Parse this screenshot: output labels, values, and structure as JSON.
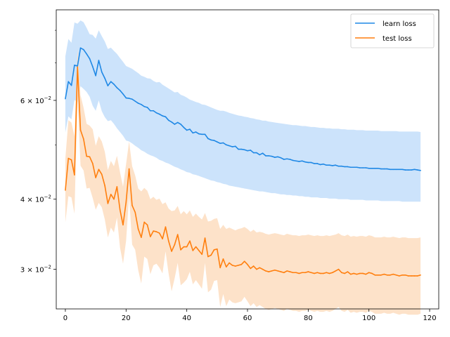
{
  "chart_data": {
    "type": "line",
    "title": "",
    "xlabel": "",
    "ylabel": "",
    "yscale": "log",
    "xlim": [
      -3,
      123
    ],
    "ylim": [
      0.0255,
      0.087
    ],
    "grid": false,
    "legend_position": "top-right",
    "x_ticks": [
      0,
      20,
      40,
      60,
      80,
      100,
      120
    ],
    "y_major_ticks": [
      {
        "value": 0.03,
        "mantissa": "3",
        "label": "3 × 10^-2"
      },
      {
        "value": 0.04,
        "mantissa": "4",
        "label": "4 × 10^-2"
      },
      {
        "value": 0.06,
        "mantissa": "6",
        "label": "6 × 10^-2"
      }
    ],
    "y_label_base": "10",
    "y_label_exponent": "−2",
    "y_label_times": "×",
    "x": [
      0,
      1,
      2,
      3,
      4,
      5,
      6,
      7,
      8,
      9,
      10,
      11,
      12,
      13,
      14,
      15,
      16,
      17,
      18,
      19,
      20,
      21,
      22,
      23,
      24,
      25,
      26,
      27,
      28,
      29,
      30,
      31,
      32,
      33,
      34,
      35,
      36,
      37,
      38,
      39,
      40,
      41,
      42,
      43,
      44,
      45,
      46,
      47,
      48,
      49,
      50,
      51,
      52,
      53,
      54,
      55,
      56,
      57,
      58,
      59,
      60,
      61,
      62,
      63,
      64,
      65,
      66,
      67,
      68,
      69,
      70,
      71,
      72,
      73,
      74,
      75,
      76,
      77,
      78,
      79,
      80,
      81,
      82,
      83,
      84,
      85,
      86,
      87,
      88,
      89,
      90,
      91,
      92,
      93,
      94,
      95,
      96,
      97,
      98,
      99,
      100,
      101,
      102,
      103,
      104,
      105,
      106,
      107,
      108,
      109,
      110,
      111,
      112,
      113,
      114,
      115,
      116,
      117
    ],
    "series": [
      {
        "name": "learn loss",
        "color": "#1f88e5",
        "band_color": "#c9e2fb",
        "values": [
          0.0604,
          0.0648,
          0.0638,
          0.0693,
          0.0691,
          0.0744,
          0.0739,
          0.0726,
          0.0712,
          0.0689,
          0.0664,
          0.0707,
          0.0674,
          0.0657,
          0.0637,
          0.0648,
          0.0641,
          0.0632,
          0.0625,
          0.0616,
          0.0606,
          0.0605,
          0.0603,
          0.0598,
          0.0593,
          0.059,
          0.0585,
          0.0583,
          0.0575,
          0.0575,
          0.057,
          0.0567,
          0.0563,
          0.0561,
          0.0553,
          0.0549,
          0.0544,
          0.0548,
          0.0544,
          0.0537,
          0.0531,
          0.0533,
          0.0525,
          0.0527,
          0.0523,
          0.0522,
          0.0522,
          0.0513,
          0.051,
          0.0509,
          0.0506,
          0.0503,
          0.0504,
          0.05,
          0.0498,
          0.0496,
          0.0497,
          0.0491,
          0.0491,
          0.049,
          0.0488,
          0.0489,
          0.0484,
          0.0484,
          0.048,
          0.0483,
          0.0478,
          0.0478,
          0.0477,
          0.0475,
          0.0476,
          0.0474,
          0.0471,
          0.0472,
          0.0471,
          0.0469,
          0.0468,
          0.0467,
          0.0468,
          0.0466,
          0.0465,
          0.0465,
          0.0463,
          0.0463,
          0.0461,
          0.0462,
          0.046,
          0.046,
          0.0459,
          0.046,
          0.0458,
          0.0458,
          0.0457,
          0.0457,
          0.0456,
          0.0456,
          0.0456,
          0.0455,
          0.0455,
          0.0455,
          0.0454,
          0.0454,
          0.0454,
          0.0454,
          0.0453,
          0.0453,
          0.0453,
          0.0452,
          0.0452,
          0.0452,
          0.0452,
          0.0452,
          0.0451,
          0.0451,
          0.0451,
          0.0452,
          0.0451,
          0.045
        ],
        "upper": [
          0.0719,
          0.0772,
          0.076,
          0.0826,
          0.0822,
          0.0833,
          0.0827,
          0.0808,
          0.0787,
          0.0785,
          0.0773,
          0.08,
          0.0781,
          0.0764,
          0.0741,
          0.0745,
          0.0735,
          0.0726,
          0.0714,
          0.0703,
          0.0691,
          0.0687,
          0.0683,
          0.0677,
          0.0671,
          0.0664,
          0.0661,
          0.0657,
          0.0656,
          0.065,
          0.0646,
          0.0647,
          0.064,
          0.0635,
          0.063,
          0.0625,
          0.062,
          0.0621,
          0.0614,
          0.0611,
          0.0607,
          0.0602,
          0.0599,
          0.0596,
          0.0594,
          0.059,
          0.0589,
          0.0586,
          0.0583,
          0.058,
          0.0577,
          0.0575,
          0.0575,
          0.0573,
          0.057,
          0.0568,
          0.0566,
          0.0564,
          0.0563,
          0.0561,
          0.056,
          0.0558,
          0.0557,
          0.0555,
          0.0554,
          0.0552,
          0.0552,
          0.055,
          0.0549,
          0.0548,
          0.0547,
          0.0546,
          0.0545,
          0.0544,
          0.0543,
          0.0542,
          0.0542,
          0.0541,
          0.054,
          0.054,
          0.0539,
          0.0538,
          0.0538,
          0.0537,
          0.0536,
          0.0536,
          0.0535,
          0.0535,
          0.0534,
          0.0534,
          0.0534,
          0.0533,
          0.0533,
          0.0532,
          0.0532,
          0.0532,
          0.0531,
          0.0531,
          0.0531,
          0.053,
          0.053,
          0.053,
          0.053,
          0.053,
          0.0529,
          0.0529,
          0.0529,
          0.0529,
          0.0529,
          0.0529,
          0.0528,
          0.0528,
          0.0528,
          0.0528,
          0.0528,
          0.0528,
          0.0528,
          0.0527
        ],
        "lower": [
          0.0526,
          0.0562,
          0.0555,
          0.0601,
          0.0596,
          0.0636,
          0.0629,
          0.0621,
          0.0609,
          0.0587,
          0.0575,
          0.06,
          0.0574,
          0.056,
          0.0551,
          0.0553,
          0.0545,
          0.0535,
          0.0527,
          0.0519,
          0.0509,
          0.0507,
          0.0503,
          0.0498,
          0.0494,
          0.0489,
          0.0486,
          0.0482,
          0.0479,
          0.0477,
          0.0474,
          0.047,
          0.0468,
          0.0465,
          0.0463,
          0.046,
          0.0457,
          0.0455,
          0.0452,
          0.045,
          0.0447,
          0.0446,
          0.0443,
          0.0442,
          0.044,
          0.0438,
          0.0436,
          0.0434,
          0.0432,
          0.0431,
          0.0429,
          0.0428,
          0.0426,
          0.0425,
          0.0423,
          0.0422,
          0.0421,
          0.042,
          0.0419,
          0.0418,
          0.0417,
          0.0416,
          0.0415,
          0.0414,
          0.0413,
          0.0413,
          0.0412,
          0.0411,
          0.041,
          0.041,
          0.0409,
          0.0408,
          0.0408,
          0.0407,
          0.0407,
          0.0406,
          0.0406,
          0.0405,
          0.0405,
          0.0404,
          0.0404,
          0.0403,
          0.0403,
          0.0403,
          0.0402,
          0.0402,
          0.0402,
          0.0401,
          0.0401,
          0.0401,
          0.04,
          0.04,
          0.04,
          0.04,
          0.0399,
          0.0399,
          0.0399,
          0.0399,
          0.0399,
          0.0398,
          0.0398,
          0.0398,
          0.0398,
          0.0398,
          0.0397,
          0.0397,
          0.0397,
          0.0397,
          0.0397,
          0.0397,
          0.0397,
          0.0396,
          0.0396,
          0.0396,
          0.0396,
          0.0396,
          0.0396,
          0.0396
        ]
      },
      {
        "name": "test loss",
        "color": "#ff7f0e",
        "band_color": "#fde0c6",
        "values": [
          0.0415,
          0.0473,
          0.047,
          0.0442,
          0.0688,
          0.0531,
          0.0512,
          0.0477,
          0.0476,
          0.0463,
          0.0437,
          0.0452,
          0.0443,
          0.0423,
          0.0393,
          0.0408,
          0.04,
          0.0421,
          0.0383,
          0.036,
          0.0395,
          0.0453,
          0.039,
          0.0379,
          0.0354,
          0.0342,
          0.0364,
          0.036,
          0.0343,
          0.0351,
          0.035,
          0.0348,
          0.034,
          0.0357,
          0.0337,
          0.0323,
          0.0332,
          0.0346,
          0.0325,
          0.0329,
          0.0329,
          0.0337,
          0.0324,
          0.0329,
          0.0324,
          0.0319,
          0.0341,
          0.0316,
          0.0318,
          0.0325,
          0.0326,
          0.0302,
          0.0313,
          0.0303,
          0.0308,
          0.0305,
          0.0304,
          0.0305,
          0.0306,
          0.031,
          0.0306,
          0.0301,
          0.0304,
          0.03,
          0.0302,
          0.03,
          0.0298,
          0.0297,
          0.0298,
          0.0299,
          0.0298,
          0.0297,
          0.0296,
          0.0298,
          0.0297,
          0.0296,
          0.0296,
          0.0295,
          0.0296,
          0.0296,
          0.0297,
          0.0296,
          0.0295,
          0.0296,
          0.0295,
          0.0295,
          0.0296,
          0.0295,
          0.0296,
          0.0298,
          0.03,
          0.0296,
          0.0295,
          0.0297,
          0.0294,
          0.0295,
          0.0294,
          0.0295,
          0.0295,
          0.0294,
          0.0296,
          0.0295,
          0.0293,
          0.0293,
          0.0293,
          0.0294,
          0.0293,
          0.0293,
          0.0294,
          0.0293,
          0.0292,
          0.0293,
          0.0293,
          0.0292,
          0.0292,
          0.0292,
          0.0292,
          0.0293
        ],
        "upper": [
          0.0473,
          0.0553,
          0.0548,
          0.0518,
          0.0741,
          0.0613,
          0.0582,
          0.0545,
          0.0541,
          0.0533,
          0.0498,
          0.0518,
          0.0507,
          0.0486,
          0.0451,
          0.0468,
          0.0458,
          0.0478,
          0.0447,
          0.0421,
          0.0462,
          0.0507,
          0.0458,
          0.0441,
          0.0418,
          0.0413,
          0.0419,
          0.0414,
          0.04,
          0.0404,
          0.0399,
          0.0401,
          0.0392,
          0.0395,
          0.0385,
          0.0381,
          0.0382,
          0.0389,
          0.0376,
          0.0381,
          0.0376,
          0.0382,
          0.0372,
          0.0377,
          0.0372,
          0.0368,
          0.0378,
          0.0365,
          0.0366,
          0.0369,
          0.037,
          0.0354,
          0.036,
          0.0354,
          0.0356,
          0.0354,
          0.0352,
          0.0354,
          0.0355,
          0.0357,
          0.0354,
          0.035,
          0.0353,
          0.0349,
          0.035,
          0.0349,
          0.0347,
          0.0346,
          0.0347,
          0.0348,
          0.0347,
          0.0346,
          0.0345,
          0.0347,
          0.0346,
          0.0345,
          0.0345,
          0.0344,
          0.0345,
          0.0345,
          0.0346,
          0.0345,
          0.0344,
          0.0345,
          0.0344,
          0.0344,
          0.0345,
          0.0344,
          0.0345,
          0.0346,
          0.0348,
          0.0345,
          0.0344,
          0.0346,
          0.0343,
          0.0344,
          0.0343,
          0.0344,
          0.0344,
          0.0343,
          0.0345,
          0.0344,
          0.0342,
          0.0342,
          0.0342,
          0.0343,
          0.0342,
          0.0342,
          0.0343,
          0.0342,
          0.0341,
          0.0342,
          0.0342,
          0.0341,
          0.0341,
          0.0341,
          0.0341,
          0.0342
        ],
        "lower": [
          0.0364,
          0.0405,
          0.0403,
          0.0377,
          0.0605,
          0.0459,
          0.045,
          0.0418,
          0.0419,
          0.0402,
          0.0383,
          0.0394,
          0.0387,
          0.0368,
          0.0342,
          0.0356,
          0.0349,
          0.0371,
          0.0328,
          0.0307,
          0.0337,
          0.0405,
          0.0332,
          0.0325,
          0.0299,
          0.0283,
          0.0316,
          0.0313,
          0.0294,
          0.0305,
          0.0307,
          0.0302,
          0.0295,
          0.0323,
          0.0295,
          0.0274,
          0.0289,
          0.0308,
          0.0281,
          0.0284,
          0.0288,
          0.0297,
          0.0282,
          0.0287,
          0.0282,
          0.0277,
          0.0308,
          0.0273,
          0.0276,
          0.0286,
          0.0287,
          0.0257,
          0.0271,
          0.0258,
          0.0265,
          0.0262,
          0.0261,
          0.0262,
          0.0263,
          0.0268,
          0.0263,
          0.0258,
          0.0261,
          0.0257,
          0.0259,
          0.0257,
          0.0255,
          0.0254,
          0.0255,
          0.0256,
          0.0255,
          0.0254,
          0.0253,
          0.0255,
          0.0254,
          0.0253,
          0.0253,
          0.0252,
          0.0253,
          0.0253,
          0.0254,
          0.0253,
          0.0252,
          0.0253,
          0.0252,
          0.0252,
          0.0253,
          0.0252,
          0.0253,
          0.0255,
          0.0257,
          0.0253,
          0.0252,
          0.0254,
          0.0251,
          0.0252,
          0.0251,
          0.0252,
          0.0252,
          0.0251,
          0.0253,
          0.0252,
          0.025,
          0.025,
          0.025,
          0.0251,
          0.025,
          0.025,
          0.0251,
          0.025,
          0.0249,
          0.025,
          0.025,
          0.0249,
          0.0249,
          0.0249,
          0.0249,
          0.025
        ]
      }
    ]
  }
}
